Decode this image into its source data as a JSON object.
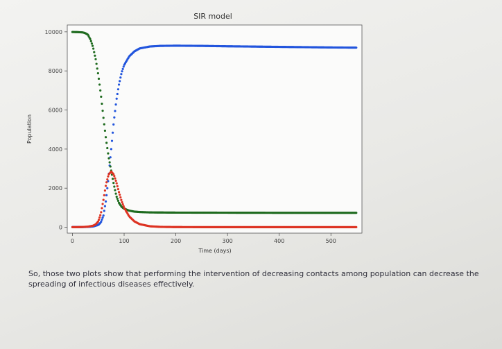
{
  "chart_data": {
    "type": "scatter",
    "title": "SIR model",
    "xlabel": "Time (days)",
    "ylabel": "Population",
    "xlim": [
      -10,
      560
    ],
    "ylim": [
      -300,
      10350
    ],
    "xticks": [
      0,
      100,
      200,
      300,
      400,
      500
    ],
    "yticks": [
      0,
      2000,
      4000,
      6000,
      8000,
      10000
    ],
    "grid": false,
    "series": [
      {
        "color": "#2255dd",
        "x": [
          0,
          10,
          20,
          30,
          40,
          50,
          55,
          60,
          65,
          70,
          75,
          80,
          85,
          90,
          95,
          100,
          110,
          120,
          130,
          150,
          170,
          200,
          250,
          300,
          400,
          500,
          550
        ],
        "y": [
          10,
          10,
          12,
          20,
          40,
          120,
          250,
          600,
          1400,
          2600,
          4000,
          5400,
          6500,
          7300,
          7900,
          8300,
          8750,
          9000,
          9150,
          9250,
          9280,
          9290,
          9280,
          9260,
          9230,
          9200,
          9190
        ]
      },
      {
        "color": "#1f6b1f",
        "x": [
          0,
          10,
          20,
          25,
          30,
          35,
          40,
          45,
          50,
          55,
          60,
          65,
          70,
          75,
          80,
          85,
          90,
          95,
          100,
          110,
          120,
          130,
          150,
          200,
          300,
          400,
          500,
          550
        ],
        "y": [
          9990,
          9985,
          9970,
          9930,
          9850,
          9600,
          9200,
          8600,
          7800,
          6800,
          5600,
          4500,
          3600,
          2900,
          2200,
          1600,
          1250,
          1050,
          950,
          850,
          800,
          780,
          760,
          750,
          745,
          740,
          740,
          740
        ]
      },
      {
        "color": "#dd3322",
        "x": [
          0,
          10,
          20,
          30,
          40,
          45,
          50,
          55,
          60,
          65,
          70,
          75,
          80,
          85,
          90,
          95,
          100,
          110,
          120,
          130,
          150,
          170,
          200,
          300,
          400,
          500,
          550
        ],
        "y": [
          5,
          8,
          15,
          30,
          80,
          150,
          300,
          700,
          1400,
          2200,
          2700,
          2850,
          2700,
          2300,
          1800,
          1350,
          1000,
          550,
          300,
          160,
          50,
          20,
          10,
          5,
          5,
          5,
          5
        ]
      }
    ]
  },
  "caption": "So, those two plots show that performing the intervention of decreasing contacts among population can decrease the spreading of infectious diseases effectively."
}
